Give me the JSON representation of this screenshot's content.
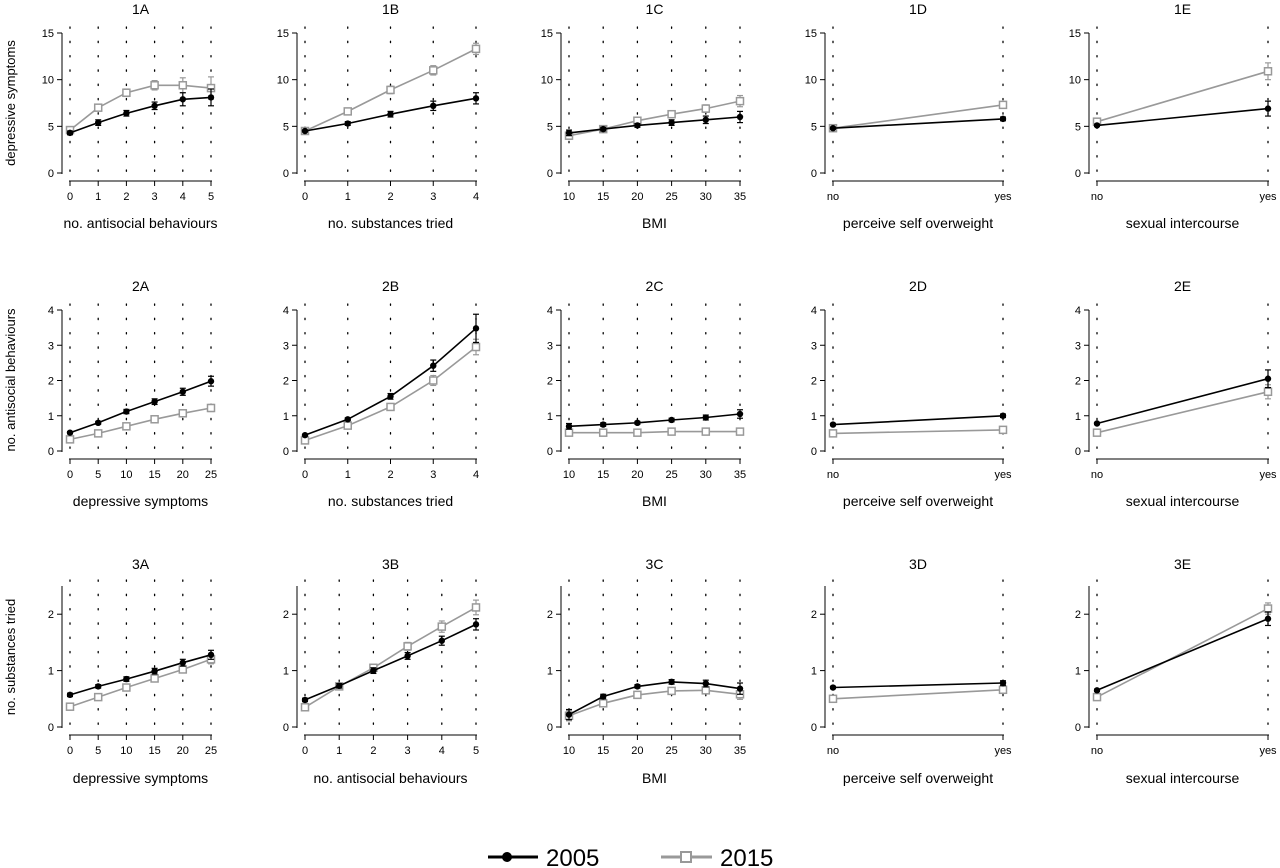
{
  "legend": {
    "items": [
      {
        "label": "2005",
        "color": "#000000",
        "marker": "filled-circle"
      },
      {
        "label": "2015",
        "color": "#999999",
        "marker": "open-square"
      }
    ]
  },
  "chart_data": [
    {
      "type": "line",
      "title": "1A",
      "xlabel": "no. antisocial behaviours",
      "ylabel": "depressive symptoms",
      "x": [
        0,
        1,
        2,
        3,
        4,
        5
      ],
      "xticks": [
        0,
        1,
        2,
        3,
        4,
        5
      ],
      "xticklabels": [
        "0",
        "1",
        "2",
        "3",
        "4",
        "5"
      ],
      "xlim": [
        0,
        5
      ],
      "ylim": [
        0,
        15
      ],
      "yticks": [
        0,
        5,
        10,
        15
      ],
      "series": [
        {
          "name": "2005",
          "values": [
            4.3,
            5.4,
            6.4,
            7.2,
            7.9,
            8.1
          ],
          "err": [
            0.2,
            0.3,
            0.3,
            0.4,
            0.7,
            0.9
          ]
        },
        {
          "name": "2015",
          "values": [
            4.6,
            7.0,
            8.6,
            9.4,
            9.4,
            9.1
          ],
          "err": [
            0.2,
            0.3,
            0.4,
            0.5,
            0.8,
            1.2
          ]
        }
      ]
    },
    {
      "type": "line",
      "title": "1B",
      "xlabel": "no. substances tried",
      "ylabel": "",
      "x": [
        0,
        1,
        2,
        3,
        4
      ],
      "xticks": [
        0,
        1,
        2,
        3,
        4
      ],
      "xticklabels": [
        "0",
        "1",
        "2",
        "3",
        "4"
      ],
      "xlim": [
        0,
        4
      ],
      "ylim": [
        0,
        15
      ],
      "yticks": [
        0,
        5,
        10,
        15
      ],
      "series": [
        {
          "name": "2005",
          "values": [
            4.5,
            5.3,
            6.3,
            7.2,
            8.0
          ],
          "err": [
            0.1,
            0.2,
            0.3,
            0.5,
            0.6
          ]
        },
        {
          "name": "2015",
          "values": [
            4.5,
            6.6,
            8.9,
            11.0,
            13.3
          ],
          "err": [
            0.1,
            0.3,
            0.4,
            0.5,
            0.6
          ]
        }
      ]
    },
    {
      "type": "line",
      "title": "1C",
      "xlabel": "BMI",
      "ylabel": "",
      "x": [
        10,
        15,
        20,
        25,
        30,
        35
      ],
      "xticks": [
        10,
        15,
        20,
        25,
        30,
        35
      ],
      "xticklabels": [
        "10",
        "15",
        "20",
        "25",
        "30",
        "35"
      ],
      "xlim": [
        10,
        35
      ],
      "ylim": [
        0,
        15
      ],
      "yticks": [
        0,
        5,
        10,
        15
      ],
      "series": [
        {
          "name": "2005",
          "values": [
            4.3,
            4.7,
            5.1,
            5.4,
            5.7,
            6.0
          ],
          "err": [
            0.3,
            0.2,
            0.2,
            0.3,
            0.4,
            0.6
          ]
        },
        {
          "name": "2015",
          "values": [
            4.0,
            4.7,
            5.6,
            6.3,
            6.9,
            7.7
          ],
          "err": [
            0.4,
            0.2,
            0.2,
            0.3,
            0.4,
            0.6
          ]
        }
      ]
    },
    {
      "type": "line",
      "title": "1D",
      "xlabel": "perceive self overweight",
      "ylabel": "",
      "x": [
        0,
        1
      ],
      "xticks": [
        0,
        1
      ],
      "xticklabels": [
        "no",
        "yes"
      ],
      "xlim": [
        0,
        1
      ],
      "ylim": [
        0,
        15
      ],
      "yticks": [
        0,
        5,
        10,
        15
      ],
      "series": [
        {
          "name": "2005",
          "values": [
            4.8,
            5.8
          ],
          "err": [
            0.1,
            0.2
          ]
        },
        {
          "name": "2015",
          "values": [
            4.8,
            7.3
          ],
          "err": [
            0.1,
            0.3
          ]
        }
      ]
    },
    {
      "type": "line",
      "title": "1E",
      "xlabel": "sexual intercourse",
      "ylabel": "",
      "x": [
        0,
        1
      ],
      "xticks": [
        0,
        1
      ],
      "xticklabels": [
        "no",
        "yes"
      ],
      "xlim": [
        0,
        1
      ],
      "ylim": [
        0,
        15
      ],
      "yticks": [
        0,
        5,
        10,
        15
      ],
      "series": [
        {
          "name": "2005",
          "values": [
            5.1,
            6.9
          ],
          "err": [
            0.1,
            0.8
          ]
        },
        {
          "name": "2015",
          "values": [
            5.5,
            10.9
          ],
          "err": [
            0.1,
            0.9
          ]
        }
      ]
    },
    {
      "type": "line",
      "title": "2A",
      "xlabel": "depressive symptoms",
      "ylabel": "no. antisocial behaviours",
      "x": [
        0,
        5,
        10,
        15,
        20,
        25
      ],
      "xticks": [
        0,
        5,
        10,
        15,
        20,
        25
      ],
      "xticklabels": [
        "0",
        "5",
        "10",
        "15",
        "20",
        "25"
      ],
      "xlim": [
        0,
        25
      ],
      "ylim": [
        0,
        4
      ],
      "yticks": [
        0,
        1,
        2,
        3,
        4
      ],
      "series": [
        {
          "name": "2005",
          "values": [
            0.52,
            0.8,
            1.12,
            1.4,
            1.68,
            1.98
          ],
          "err": [
            0.03,
            0.04,
            0.06,
            0.08,
            0.1,
            0.14
          ]
        },
        {
          "name": "2015",
          "values": [
            0.33,
            0.5,
            0.7,
            0.9,
            1.07,
            1.22
          ],
          "err": [
            0.03,
            0.03,
            0.04,
            0.05,
            0.07,
            0.1
          ]
        }
      ]
    },
    {
      "type": "line",
      "title": "2B",
      "xlabel": "no. substances tried",
      "ylabel": "",
      "x": [
        0,
        1,
        2,
        3,
        4
      ],
      "xticks": [
        0,
        1,
        2,
        3,
        4
      ],
      "xticklabels": [
        "0",
        "1",
        "2",
        "3",
        "4"
      ],
      "xlim": [
        0,
        4
      ],
      "ylim": [
        0,
        4
      ],
      "yticks": [
        0,
        1,
        2,
        3,
        4
      ],
      "series": [
        {
          "name": "2005",
          "values": [
            0.45,
            0.9,
            1.55,
            2.42,
            3.48
          ],
          "err": [
            0.02,
            0.04,
            0.08,
            0.16,
            0.4
          ]
        },
        {
          "name": "2015",
          "values": [
            0.3,
            0.72,
            1.25,
            2.0,
            2.95
          ],
          "err": [
            0.02,
            0.04,
            0.07,
            0.14,
            0.22
          ]
        }
      ]
    },
    {
      "type": "line",
      "title": "2C",
      "xlabel": "BMI",
      "ylabel": "",
      "x": [
        10,
        15,
        20,
        25,
        30,
        35
      ],
      "xticks": [
        10,
        15,
        20,
        25,
        30,
        35
      ],
      "xticklabels": [
        "10",
        "15",
        "20",
        "25",
        "30",
        "35"
      ],
      "xlim": [
        10,
        35
      ],
      "ylim": [
        0,
        4
      ],
      "yticks": [
        0,
        1,
        2,
        3,
        4
      ],
      "series": [
        {
          "name": "2005",
          "values": [
            0.7,
            0.75,
            0.8,
            0.88,
            0.95,
            1.05
          ],
          "err": [
            0.08,
            0.05,
            0.04,
            0.05,
            0.07,
            0.12
          ]
        },
        {
          "name": "2015",
          "values": [
            0.52,
            0.52,
            0.52,
            0.55,
            0.55,
            0.55
          ],
          "err": [
            0.06,
            0.04,
            0.03,
            0.03,
            0.05,
            0.07
          ]
        }
      ]
    },
    {
      "type": "line",
      "title": "2D",
      "xlabel": "perceive self overweight",
      "ylabel": "",
      "x": [
        0,
        1
      ],
      "xticks": [
        0,
        1
      ],
      "xticklabels": [
        "no",
        "yes"
      ],
      "xlim": [
        0,
        1
      ],
      "ylim": [
        0,
        4
      ],
      "yticks": [
        0,
        1,
        2,
        3,
        4
      ],
      "series": [
        {
          "name": "2005",
          "values": [
            0.75,
            1.0
          ],
          "err": [
            0.03,
            0.05
          ]
        },
        {
          "name": "2015",
          "values": [
            0.5,
            0.6
          ],
          "err": [
            0.02,
            0.03
          ]
        }
      ]
    },
    {
      "type": "line",
      "title": "2E",
      "xlabel": "sexual intercourse",
      "ylabel": "",
      "x": [
        0,
        1
      ],
      "xticks": [
        0,
        1
      ],
      "xticklabels": [
        "no",
        "yes"
      ],
      "xlim": [
        0,
        1
      ],
      "ylim": [
        0,
        4
      ],
      "yticks": [
        0,
        1,
        2,
        3,
        4
      ],
      "series": [
        {
          "name": "2005",
          "values": [
            0.78,
            2.05
          ],
          "err": [
            0.03,
            0.25
          ]
        },
        {
          "name": "2015",
          "values": [
            0.52,
            1.68
          ],
          "err": [
            0.03,
            0.2
          ]
        }
      ]
    },
    {
      "type": "line",
      "title": "3A",
      "xlabel": "depressive symptoms",
      "ylabel": "no. substances tried",
      "x": [
        0,
        5,
        10,
        15,
        20,
        25
      ],
      "xticks": [
        0,
        5,
        10,
        15,
        20,
        25
      ],
      "xticklabels": [
        "0",
        "5",
        "10",
        "15",
        "20",
        "25"
      ],
      "xlim": [
        0,
        25
      ],
      "ylim": [
        0,
        2.5
      ],
      "yticks": [
        0,
        1,
        2
      ],
      "series": [
        {
          "name": "2005",
          "values": [
            0.57,
            0.72,
            0.85,
            0.99,
            1.14,
            1.28
          ],
          "err": [
            0.03,
            0.03,
            0.04,
            0.05,
            0.06,
            0.08
          ]
        },
        {
          "name": "2015",
          "values": [
            0.36,
            0.53,
            0.7,
            0.86,
            1.02,
            1.2
          ],
          "err": [
            0.03,
            0.03,
            0.04,
            0.05,
            0.06,
            0.08
          ]
        }
      ]
    },
    {
      "type": "line",
      "title": "3B",
      "xlabel": "no. antisocial behaviours",
      "ylabel": "",
      "x": [
        0,
        1,
        2,
        3,
        4,
        5
      ],
      "xticks": [
        0,
        1,
        2,
        3,
        4,
        5
      ],
      "xticklabels": [
        "0",
        "1",
        "2",
        "3",
        "4",
        "5"
      ],
      "xlim": [
        0,
        5
      ],
      "ylim": [
        0,
        2.5
      ],
      "yticks": [
        0,
        1,
        2
      ],
      "series": [
        {
          "name": "2005",
          "values": [
            0.48,
            0.73,
            1.0,
            1.26,
            1.53,
            1.82
          ],
          "err": [
            0.03,
            0.04,
            0.05,
            0.06,
            0.08,
            0.1
          ]
        },
        {
          "name": "2015",
          "values": [
            0.35,
            0.72,
            1.05,
            1.43,
            1.78,
            2.12
          ],
          "err": [
            0.03,
            0.04,
            0.05,
            0.07,
            0.1,
            0.13
          ]
        }
      ]
    },
    {
      "type": "line",
      "title": "3C",
      "xlabel": "BMI",
      "ylabel": "",
      "x": [
        10,
        15,
        20,
        25,
        30,
        35
      ],
      "xticks": [
        10,
        15,
        20,
        25,
        30,
        35
      ],
      "xticklabels": [
        "10",
        "15",
        "20",
        "25",
        "30",
        "35"
      ],
      "xlim": [
        10,
        35
      ],
      "ylim": [
        0,
        2.5
      ],
      "yticks": [
        0,
        1,
        2
      ],
      "series": [
        {
          "name": "2005",
          "values": [
            0.22,
            0.54,
            0.72,
            0.8,
            0.77,
            0.68
          ],
          "err": [
            0.09,
            0.04,
            0.03,
            0.04,
            0.06,
            0.1
          ]
        },
        {
          "name": "2015",
          "values": [
            0.2,
            0.42,
            0.57,
            0.64,
            0.65,
            0.58
          ],
          "err": [
            0.09,
            0.03,
            0.03,
            0.04,
            0.06,
            0.09
          ]
        }
      ]
    },
    {
      "type": "line",
      "title": "3D",
      "xlabel": "perceive self overweight",
      "ylabel": "",
      "x": [
        0,
        1
      ],
      "xticks": [
        0,
        1
      ],
      "xticklabels": [
        "no",
        "yes"
      ],
      "xlim": [
        0,
        1
      ],
      "ylim": [
        0,
        2.5
      ],
      "yticks": [
        0,
        1,
        2
      ],
      "series": [
        {
          "name": "2005",
          "values": [
            0.7,
            0.78
          ],
          "err": [
            0.02,
            0.04
          ]
        },
        {
          "name": "2015",
          "values": [
            0.5,
            0.66
          ],
          "err": [
            0.02,
            0.04
          ]
        }
      ]
    },
    {
      "type": "line",
      "title": "3E",
      "xlabel": "sexual intercourse",
      "ylabel": "",
      "x": [
        0,
        1
      ],
      "xticks": [
        0,
        1
      ],
      "xticklabels": [
        "no",
        "yes"
      ],
      "xlim": [
        0,
        1
      ],
      "ylim": [
        0,
        2.5
      ],
      "yticks": [
        0,
        1,
        2
      ],
      "series": [
        {
          "name": "2005",
          "values": [
            0.65,
            1.92
          ],
          "err": [
            0.02,
            0.12
          ]
        },
        {
          "name": "2015",
          "values": [
            0.53,
            2.1
          ],
          "err": [
            0.02,
            0.1
          ]
        }
      ]
    }
  ]
}
